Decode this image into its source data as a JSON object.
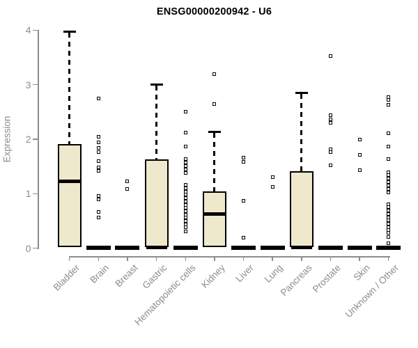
{
  "chart_data": {
    "type": "box",
    "title": "ENSG00000200942 - U6",
    "xlabel": "",
    "ylabel": "Expression",
    "ylim": [
      0,
      4
    ],
    "yticks": [
      0,
      1,
      2,
      3,
      4
    ],
    "grid": false,
    "legend": null,
    "categories": [
      "Bladder",
      "Brain",
      "Breast",
      "Gastric",
      "Hematopoietic cells",
      "Kidney",
      "Liver",
      "Lung",
      "Pancreas",
      "Prostate",
      "Skin",
      "Unknown / Other"
    ],
    "boxes": [
      {
        "category": "Bladder",
        "q1": 0.02,
        "median": 1.23,
        "q3": 1.91,
        "whisker_low": 0.02,
        "whisker_high": 3.97,
        "outliers": []
      },
      {
        "category": "Brain",
        "q1": 0,
        "median": 0.01,
        "q3": 0.03,
        "whisker_low": 0,
        "whisker_high": 0.03,
        "outliers": [
          2.75,
          2.04,
          1.94,
          1.84,
          1.77,
          1.6,
          1.48,
          1.42,
          0.96,
          0.89,
          0.67,
          0.56
        ]
      },
      {
        "category": "Breast",
        "q1": 0,
        "median": 0.01,
        "q3": 0.03,
        "whisker_low": 0,
        "whisker_high": 0.03,
        "outliers": [
          1.23,
          1.09
        ]
      },
      {
        "category": "Gastric",
        "q1": 0.02,
        "median": 0.02,
        "q3": 1.63,
        "whisker_low": 0,
        "whisker_high": 3.0,
        "outliers": []
      },
      {
        "category": "Hematopoietic cells",
        "q1": 0,
        "median": 0.01,
        "q3": 0.03,
        "whisker_low": 0,
        "whisker_high": 0.03,
        "outliers": [
          2.51,
          2.12,
          1.87,
          1.64,
          1.57,
          1.51,
          1.44,
          1.38,
          1.16,
          1.1,
          1.04,
          0.98,
          0.92,
          0.86,
          0.8,
          0.74,
          0.68,
          0.62,
          0.56,
          0.5,
          0.44,
          0.38,
          0.31
        ]
      },
      {
        "category": "Kidney",
        "q1": 0.02,
        "median": 0.63,
        "q3": 1.04,
        "whisker_low": 0.02,
        "whisker_high": 2.14,
        "outliers": [
          3.2,
          2.64
        ]
      },
      {
        "category": "Liver",
        "q1": 0,
        "median": 0.01,
        "q3": 0.03,
        "whisker_low": 0,
        "whisker_high": 0.03,
        "outliers": [
          1.66,
          1.58,
          0.87,
          0.2
        ]
      },
      {
        "category": "Lung",
        "q1": 0,
        "median": 0.01,
        "q3": 0.03,
        "whisker_low": 0,
        "whisker_high": 0.03,
        "outliers": [
          1.3,
          1.12
        ]
      },
      {
        "category": "Pancreas",
        "q1": 0.02,
        "median": 0.02,
        "q3": 1.41,
        "whisker_low": 0,
        "whisker_high": 2.85,
        "outliers": []
      },
      {
        "category": "Prostate",
        "q1": 0,
        "median": 0.01,
        "q3": 0.03,
        "whisker_low": 0,
        "whisker_high": 0.03,
        "outliers": [
          3.52,
          2.44,
          2.37,
          2.3,
          1.81,
          1.77,
          1.52
        ]
      },
      {
        "category": "Skin",
        "q1": 0,
        "median": 0.01,
        "q3": 0.03,
        "whisker_low": 0,
        "whisker_high": 0.03,
        "outliers": [
          1.99,
          1.71,
          1.43
        ]
      },
      {
        "category": "Unknown / Other",
        "q1": 0,
        "median": 0.01,
        "q3": 0.03,
        "whisker_low": 0,
        "whisker_high": 0.03,
        "outliers": [
          2.77,
          2.72,
          2.63,
          2.11,
          1.87,
          1.64,
          1.4,
          1.34,
          1.28,
          1.22,
          1.15,
          1.09,
          1.02,
          0.81,
          0.75,
          0.69,
          0.63,
          0.57,
          0.51,
          0.45,
          0.38,
          0.33,
          0.28,
          0.21,
          0.09
        ]
      }
    ]
  },
  "colors": {
    "box_fill": "#eee8cd",
    "box_stroke": "#000000",
    "axis": "#8c8c8c",
    "tick_label": "#8c8c8c",
    "title_text": "#000000",
    "background": "#ffffff"
  }
}
